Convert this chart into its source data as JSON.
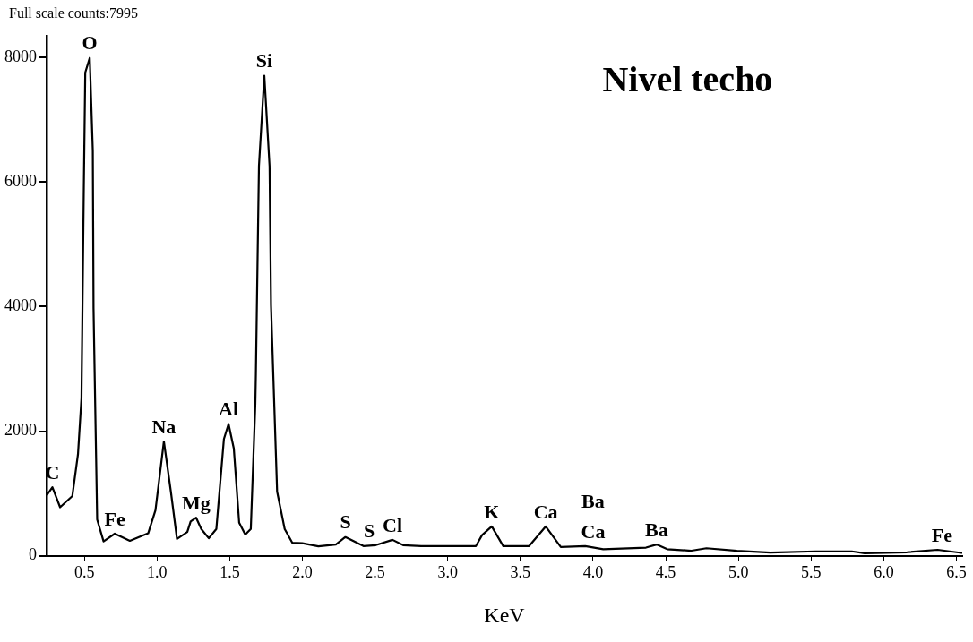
{
  "chart_data": {
    "type": "line",
    "title": "Nivel techo",
    "subtitle": "Full scale counts:7995",
    "xlabel": "KeV",
    "x": [
      0.243,
      0.28,
      0.333,
      0.417,
      0.456,
      0.48,
      0.496,
      0.506,
      0.537,
      0.558,
      0.563,
      0.588,
      0.632,
      0.709,
      0.813,
      0.939,
      0.989,
      1.047,
      1.095,
      1.137,
      1.208,
      1.231,
      1.269,
      1.304,
      1.356,
      1.408,
      1.46,
      1.492,
      1.528,
      1.565,
      1.607,
      1.645,
      1.659,
      1.676,
      1.68,
      1.701,
      1.738,
      1.774,
      1.784,
      1.826,
      1.878,
      1.93,
      2.0,
      2.11,
      2.23,
      2.296,
      2.42,
      2.505,
      2.62,
      2.693,
      2.818,
      3.194,
      3.236,
      3.303,
      3.382,
      3.56,
      3.674,
      3.778,
      3.946,
      4.07,
      4.364,
      4.437,
      4.51,
      4.677,
      4.78,
      4.99,
      5.22,
      5.533,
      5.78,
      5.868,
      6.16,
      6.37,
      6.536
    ],
    "series": [
      {
        "color": "#000000",
        "values": [
          977,
          1100,
          778,
          957,
          1630,
          2530,
          5900,
          7760,
          7995,
          6500,
          3970,
          580,
          230,
          354,
          240,
          360,
          730,
          1835,
          1030,
          270,
          380,
          550,
          610,
          430,
          280,
          430,
          1875,
          2115,
          1725,
          530,
          340,
          430,
          1330,
          2420,
          2920,
          6260,
          7710,
          6260,
          4020,
          1030,
          430,
          210,
          200,
          150,
          180,
          300,
          155,
          170,
          255,
          170,
          155,
          155,
          330,
          470,
          155,
          155,
          470,
          140,
          155,
          105,
          130,
          180,
          105,
          80,
          120,
          80,
          50,
          70,
          70,
          40,
          55,
          95,
          45
        ]
      }
    ],
    "xlim": [
      0.24,
      6.54
    ],
    "ylim": [
      0,
      8350
    ],
    "xticks": [
      0.5,
      {
        "value": 1,
        "label": "1.0"
      },
      1.5,
      {
        "value": 2,
        "label": "2.0"
      },
      2.5,
      {
        "value": 3,
        "label": "3.0"
      },
      3.5,
      {
        "value": 4,
        "label": "4.0"
      },
      4.5,
      {
        "value": 5,
        "label": "5.0"
      },
      5.5,
      {
        "value": 6,
        "label": "6.0"
      },
      6.5
    ],
    "yticks": [
      0,
      2000,
      4000,
      6000,
      8000
    ],
    "grid": false,
    "legend": false,
    "marker": "none",
    "line_style": "solid",
    "annotations": [
      {
        "text": "C",
        "x": 0.28,
        "y": 1100
      },
      {
        "text": "O",
        "x": 0.537,
        "y": 7995
      },
      {
        "text": "Fe",
        "x": 0.709,
        "y": 354
      },
      {
        "text": "Na",
        "x": 1.047,
        "y": 1835
      },
      {
        "text": "Mg",
        "x": 1.269,
        "y": 610
      },
      {
        "text": "Al",
        "x": 1.492,
        "y": 2115
      },
      {
        "text": "Si",
        "x": 1.738,
        "y": 7710
      },
      {
        "text": "S",
        "x": 2.296,
        "y": 300
      },
      {
        "text": "S",
        "x": 2.46,
        "y": 160
      },
      {
        "text": "Cl",
        "x": 2.62,
        "y": 255
      },
      {
        "text": "K",
        "x": 3.303,
        "y": 470
      },
      {
        "text": "Ca",
        "x": 3.674,
        "y": 470
      },
      {
        "text": "Ca",
        "x": 4.0,
        "y": 150
      },
      {
        "text": "Ba",
        "x": 4.0,
        "y": 150
      },
      {
        "text": "Ba",
        "x": 4.437,
        "y": 180
      },
      {
        "text": "Fe",
        "x": 6.4,
        "y": 95
      }
    ]
  }
}
